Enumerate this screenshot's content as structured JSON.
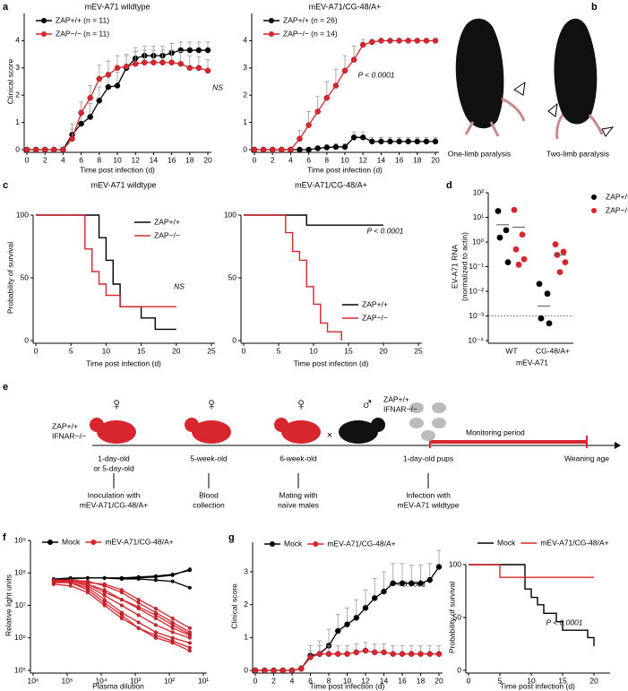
{
  "panel_labels": [
    "a",
    "b",
    "c",
    "d",
    "e",
    "f",
    "g"
  ],
  "photos": [
    {
      "caption": "One-limb paralysis"
    },
    {
      "caption": "Two-limb paralysis"
    }
  ],
  "diagram": {
    "female_symbols": [
      "♀",
      "♀",
      "♀"
    ],
    "male_symbol": "♂",
    "mother_genotype": [
      "ZAP+/+",
      "IFNAR−/−"
    ],
    "father_genotype": [
      "ZAP+/+",
      "IFNAR−/−"
    ],
    "cross": "×",
    "stages": [
      {
        "time": [
          "1-day-old",
          "or 5-day-old"
        ],
        "event": [
          "Inoculation with",
          "mEV-A71/CG-48/A+"
        ]
      },
      {
        "time": [
          "5-week-old"
        ],
        "event": [
          "Blood",
          "collection"
        ]
      },
      {
        "time": [
          "6-week-old"
        ],
        "event": [
          "Mating with",
          "naïve males"
        ]
      },
      {
        "time": [
          "1-day-old pups"
        ],
        "event": [
          "Infection with",
          "mEV-A71 wildtype"
        ]
      },
      {
        "time": [
          "Weaning age"
        ]
      }
    ],
    "period": "Monitoring period"
  },
  "chart_data": [
    {
      "type": "line",
      "title": "mEV-A71 wildtype",
      "xlabel": "Time post infection (d)",
      "ylabel": "Clinical score",
      "x": [
        0,
        1,
        2,
        3,
        4,
        5,
        6,
        7,
        8,
        9,
        10,
        11,
        12,
        13,
        14,
        15,
        16,
        17,
        18,
        19,
        20
      ],
      "xlim": [
        0,
        20
      ],
      "xticks": [
        0,
        2,
        4,
        6,
        8,
        10,
        12,
        14,
        16,
        18,
        20
      ],
      "ylim": [
        0,
        5
      ],
      "yticks": [
        0,
        1,
        2,
        3,
        4
      ],
      "legend": "upper left",
      "annotation": "NS",
      "series": [
        {
          "name": "ZAP+/+ (n = 11)",
          "color": "#000000",
          "values": [
            0,
            0,
            0,
            0,
            0,
            0.55,
            0.95,
            1.2,
            1.8,
            2.3,
            2.35,
            3.0,
            3.35,
            3.45,
            3.45,
            3.45,
            3.55,
            3.65,
            3.65,
            3.65,
            3.65
          ],
          "errors": [
            0,
            0,
            0,
            0,
            0,
            0.4,
            0.5,
            0.5,
            0.5,
            0.5,
            0.5,
            0.45,
            0.4,
            0.35,
            0.35,
            0.35,
            0.35,
            0.3,
            0.3,
            0.3,
            0.3
          ]
        },
        {
          "name": "ZAP−/− (n = 11)",
          "color": "#d7262e",
          "values": [
            0,
            0,
            0,
            0,
            0,
            0.4,
            1.35,
            1.9,
            2.6,
            2.75,
            3.0,
            3.05,
            3.15,
            3.2,
            3.2,
            3.2,
            3.2,
            3.15,
            3.0,
            3.0,
            2.9
          ],
          "errors": [
            0,
            0,
            0,
            0,
            0,
            0.35,
            0.4,
            0.45,
            0.5,
            0.5,
            0.45,
            0.45,
            0.45,
            0.45,
            0.45,
            0.45,
            0.45,
            0.45,
            0.45,
            0.4,
            0.4
          ]
        }
      ]
    },
    {
      "type": "line",
      "title": "mEV-A71/CG-48/A+",
      "xlabel": "Time post infection (d)",
      "x": [
        0,
        1,
        2,
        3,
        4,
        5,
        6,
        7,
        8,
        9,
        10,
        11,
        12,
        13,
        14,
        15,
        16,
        17,
        18,
        19,
        20
      ],
      "xlim": [
        0,
        20
      ],
      "xticks": [
        0,
        2,
        4,
        6,
        8,
        10,
        12,
        14,
        16,
        18,
        20
      ],
      "ylim": [
        0,
        5
      ],
      "yticks": [
        0,
        1,
        2,
        3,
        4
      ],
      "legend": "upper left",
      "annotation": "P < 0.0001",
      "series": [
        {
          "name": "ZAP+/+ (n = 26)",
          "color": "#000000",
          "values": [
            0,
            0,
            0,
            0,
            0,
            0,
            0,
            0.05,
            0.08,
            0.1,
            0.1,
            0.45,
            0.45,
            0.3,
            0.3,
            0.3,
            0.3,
            0.3,
            0.3,
            0.3,
            0.3
          ],
          "errors": [
            0,
            0,
            0,
            0,
            0,
            0,
            0,
            0.08,
            0.1,
            0.12,
            0.12,
            0.2,
            0.2,
            0.15,
            0.15,
            0.15,
            0.15,
            0.15,
            0.15,
            0.15,
            0.15
          ]
        },
        {
          "name": "ZAP−/− (n = 14)",
          "color": "#d7262e",
          "values": [
            0,
            0,
            0,
            0,
            0,
            0.4,
            0.9,
            1.4,
            1.9,
            2.35,
            2.9,
            3.3,
            3.85,
            3.95,
            4,
            4,
            4,
            4,
            4,
            4,
            4
          ],
          "errors": [
            0,
            0,
            0,
            0,
            0,
            0.3,
            0.5,
            0.55,
            0.6,
            0.6,
            0.55,
            0.5,
            0.2,
            0.1,
            0,
            0,
            0,
            0,
            0,
            0,
            0
          ]
        }
      ]
    },
    {
      "type": "step",
      "title": "mEV-A71 wildtype",
      "xlabel": "Time post infection (d)",
      "ylabel": "Probability of survival",
      "xlim": [
        0,
        25
      ],
      "xticks": [
        0,
        5,
        10,
        15,
        20,
        25
      ],
      "ylim": [
        0,
        100
      ],
      "yticks": [
        0,
        50,
        100
      ],
      "legend": "upper right",
      "annotation": "NS",
      "series": [
        {
          "name": "ZAP+/+",
          "color": "#000000",
          "x": [
            0,
            9,
            10,
            11,
            12,
            15,
            17,
            20
          ],
          "y": [
            100,
            82,
            64,
            45,
            27,
            18,
            9,
            9
          ]
        },
        {
          "name": "ZAP−/−",
          "color": "#d7262e",
          "x": [
            0,
            7,
            8,
            9,
            10,
            12,
            20
          ],
          "y": [
            100,
            73,
            55,
            45,
            36,
            27,
            27
          ]
        }
      ]
    },
    {
      "type": "step",
      "title": "mEV-A71/CG-48/A+",
      "xlabel": "Time post infection (d)",
      "xlim": [
        0,
        25
      ],
      "xticks": [
        0,
        5,
        10,
        15,
        20,
        25
      ],
      "ylim": [
        0,
        100
      ],
      "yticks": [
        0,
        50,
        100
      ],
      "legend": "lower right",
      "annotation": "P < 0.0001",
      "series": [
        {
          "name": "ZAP+/+",
          "color": "#000000",
          "x": [
            0,
            9,
            20
          ],
          "y": [
            100,
            92,
            92
          ]
        },
        {
          "name": "ZAP−/−",
          "color": "#d7262e",
          "x": [
            0,
            6,
            7,
            8,
            9,
            10,
            11,
            12,
            14
          ],
          "y": [
            100,
            86,
            71,
            64,
            43,
            29,
            14,
            7,
            0
          ]
        }
      ]
    },
    {
      "type": "scatter",
      "xlabel": "mEV-A71",
      "ylabel": [
        "EV-A71 RNA",
        "(normalized to actin)"
      ],
      "categories": [
        "WT",
        "CG-48/A+"
      ],
      "log_y": true,
      "ylim": [
        0.0001,
        100
      ],
      "yticks": [
        {
          "value": 0.0001,
          "label": "10⁻⁴"
        },
        {
          "value": 0.001,
          "label": "10⁻³"
        },
        {
          "value": 0.01,
          "label": "10⁻²"
        },
        {
          "value": 0.1,
          "label": "10⁻¹"
        },
        {
          "value": 1,
          "label": "10⁰"
        },
        {
          "value": 10,
          "label": "10¹"
        },
        {
          "value": 100,
          "label": "10²"
        }
      ],
      "reference_line": 0.001,
      "legend": "right",
      "series": [
        {
          "name": "ZAP+/+",
          "color": "#000000",
          "values": [
            [
              18,
              3,
              1.5,
              0.15
            ],
            [
              0.02,
              0.008,
              0.0008,
              0.0005
            ]
          ],
          "means": [
            5,
            0.0025
          ]
        },
        {
          "name": "ZAP−/−",
          "color": "#d7262e",
          "values": [
            [
              20,
              2,
              0.5,
              0.2,
              0.12
            ],
            [
              0.8,
              0.4,
              0.3,
              0.15,
              0.06
            ]
          ],
          "means": [
            4,
            0.3
          ]
        }
      ]
    },
    {
      "type": "line",
      "xlabel": "Plasma dilution",
      "ylabel": "Relative light units",
      "log_x": true,
      "log_y": true,
      "x": [
        250000,
        80000,
        25000,
        8000,
        2500,
        800,
        250,
        80,
        25
      ],
      "xlim": [
        1000000,
        10
      ],
      "xticks": [
        {
          "value": 1000000,
          "label": "10⁶"
        },
        {
          "value": 100000,
          "label": "10⁵"
        },
        {
          "value": 10000,
          "label": "10⁴"
        },
        {
          "value": 1000,
          "label": "10³"
        },
        {
          "value": 100,
          "label": "10²"
        },
        {
          "value": 10,
          "label": "10¹"
        }
      ],
      "ylim": [
        100000,
        1000000000
      ],
      "yticks": [
        {
          "value": 100000,
          "label": "10⁵"
        },
        {
          "value": 1000000,
          "label": "10⁶"
        },
        {
          "value": 10000000,
          "label": "10⁷"
        },
        {
          "value": 100000000,
          "label": "10⁸"
        },
        {
          "value": 1000000000,
          "label": "10⁹"
        }
      ],
      "legend": "upper left",
      "series": [
        {
          "name": "Mock",
          "color": "#000000",
          "lines": [
            [
              60000000,
              65000000,
              70000000,
              70000000,
              70000000,
              75000000,
              80000000,
              90000000,
              120000000
            ],
            [
              60000000,
              65000000,
              70000000,
              70000000,
              70000000,
              70000000,
              75000000,
              85000000,
              130000000
            ],
            [
              65000000,
              70000000,
              70000000,
              70000000,
              65000000,
              65000000,
              60000000,
              55000000,
              35000000
            ]
          ]
        },
        {
          "name": "mEV-A71/CG-48/A+",
          "color": "#d7262e",
          "lines": [
            [
              60000000,
              60000000,
              55000000,
              40000000,
              25000000,
              12000000,
              6000000,
              3000000,
              1500000
            ],
            [
              55000000,
              55000000,
              45000000,
              30000000,
              15000000,
              8000000,
              4000000,
              2000000,
              1200000
            ],
            [
              60000000,
              55000000,
              40000000,
              20000000,
              10000000,
              5000000,
              2500000,
              1500000,
              1000000
            ],
            [
              50000000,
              50000000,
              35000000,
              15000000,
              6000000,
              3000000,
              1500000,
              1000000,
              700000
            ],
            [
              60000000,
              60000000,
              50000000,
              45000000,
              30000000,
              15000000,
              8000000,
              4000000,
              2000000
            ],
            [
              55000000,
              50000000,
              30000000,
              12000000,
              5000000,
              2000000,
              1200000,
              800000,
              500000
            ],
            [
              60000000,
              55000000,
              45000000,
              25000000,
              15000000,
              9000000,
              5000000,
              2500000,
              1300000
            ],
            [
              45000000,
              40000000,
              25000000,
              10000000,
              4000000,
              2000000,
              1000000,
              700000,
              400000
            ]
          ]
        }
      ]
    },
    {
      "type": "line",
      "xlabel": "Time post infection (d)",
      "ylabel": "Clinical score",
      "x": [
        0,
        1,
        2,
        3,
        4,
        5,
        6,
        7,
        8,
        9,
        10,
        11,
        12,
        13,
        14,
        15,
        16,
        17,
        18,
        19,
        20
      ],
      "xlim": [
        0,
        20
      ],
      "xticks": [
        0,
        2,
        4,
        6,
        8,
        10,
        12,
        14,
        16,
        18,
        20
      ],
      "ylim": [
        0,
        3.9
      ],
      "yticks": [
        0,
        1,
        2,
        3
      ],
      "legend": "upper left",
      "annotation": "P < 0.0001",
      "series": [
        {
          "name": "Mock",
          "color": "#000000",
          "values": [
            0,
            0,
            0,
            0,
            0,
            0.05,
            0.45,
            0.5,
            0.75,
            1.2,
            1.4,
            1.6,
            1.9,
            2.2,
            2.4,
            2.65,
            2.65,
            2.65,
            2.65,
            2.75,
            3.15
          ],
          "errors": [
            0,
            0,
            0,
            0,
            0,
            0.1,
            0.3,
            0.4,
            0.5,
            0.5,
            0.5,
            0.55,
            0.55,
            0.6,
            0.6,
            0.6,
            0.6,
            0.55,
            0.55,
            0.5,
            0.5
          ]
        },
        {
          "name": "mEV-A71/CG-48/A+",
          "color": "#d7262e",
          "values": [
            0,
            0,
            0,
            0,
            0,
            0.05,
            0.4,
            0.5,
            0.5,
            0.5,
            0.5,
            0.55,
            0.6,
            0.55,
            0.55,
            0.5,
            0.5,
            0.5,
            0.5,
            0.5,
            0.5
          ],
          "errors": [
            0,
            0,
            0,
            0,
            0,
            0.05,
            0.2,
            0.25,
            0.25,
            0.25,
            0.25,
            0.25,
            0.25,
            0.25,
            0.25,
            0.25,
            0.25,
            0.25,
            0.25,
            0.25,
            0.25
          ]
        }
      ]
    },
    {
      "type": "step",
      "xlabel": "Time post infection (d)",
      "ylabel": "Probability of survival",
      "xlim": [
        0,
        22
      ],
      "xticks": [
        0,
        5,
        10,
        15,
        20
      ],
      "ylim": [
        0,
        100
      ],
      "yticks": [
        0,
        50,
        100
      ],
      "legend": "upper left",
      "annotation": "P < 0.0001",
      "series": [
        {
          "name": "Mock",
          "color": "#000000",
          "x": [
            0,
            9,
            10,
            11,
            12,
            14,
            15,
            16,
            19,
            20
          ],
          "y": [
            100,
            77,
            69,
            62,
            54,
            46,
            38,
            38,
            31,
            23
          ]
        },
        {
          "name": "mEV-A71/CG-48/A+",
          "color": "#d7262e",
          "x": [
            0,
            5,
            20
          ],
          "y": [
            100,
            88,
            88
          ]
        }
      ]
    }
  ]
}
